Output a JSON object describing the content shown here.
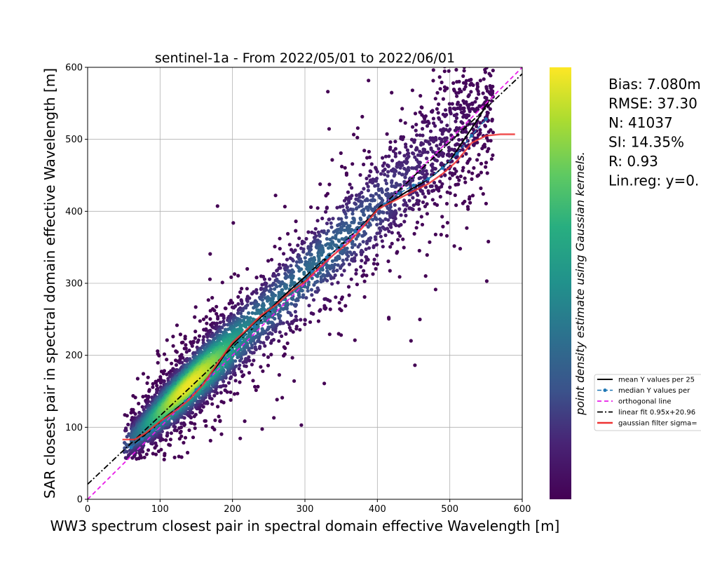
{
  "chart_data": {
    "type": "scatter",
    "title": "sentinel-1a - From 2022/05/01 to 2022/06/01",
    "xlabel": "WW3 spectrum closest pair in spectral domain effective Wavelength [m]",
    "ylabel": "SAR closest pair in spectral domain effective Wavelength [m]",
    "xlim": [
      0,
      600
    ],
    "ylim": [
      0,
      600
    ],
    "xticks": [
      "0",
      "100",
      "200",
      "300",
      "400",
      "500",
      "600"
    ],
    "yticks": [
      "0",
      "100",
      "200",
      "300",
      "400",
      "500",
      "600"
    ],
    "grid": true,
    "colormap": "viridis",
    "colorbar_label": "point density estimate using Gaussian kernels.",
    "stats": [
      "Bias: 7.080m",
      "RMSE: 37.30",
      "N: 41037",
      "SI: 14.35%",
      "R: 0.93",
      "Lin.reg: y=0."
    ],
    "legend_placement": "right-outside",
    "legend": [
      "mean Y values per 25",
      "median Y values per",
      "orthogonal line",
      "linear fit 0.95x+20.96",
      "gaussian filter sigma="
    ],
    "series": [
      {
        "name": "mean Y values per 25",
        "color": "#000000",
        "x": [
          65,
          75,
          90,
          105,
          120,
          135,
          150,
          165,
          180,
          195,
          210,
          230,
          250,
          270,
          290,
          310,
          330,
          350,
          370,
          390,
          405,
          420,
          440,
          460,
          480,
          500,
          520,
          540,
          555
        ],
        "y": [
          78,
          86,
          98,
          112,
          124,
          136,
          150,
          168,
          187,
          210,
          225,
          245,
          262,
          282,
          300,
          318,
          336,
          352,
          372,
          392,
          408,
          414,
          427,
          438,
          452,
          470,
          500,
          530,
          555
        ]
      },
      {
        "name": "median Y values per",
        "color": "#1f77b4",
        "x": [
          60,
          75,
          90,
          105,
          120,
          135,
          150,
          170,
          190,
          210,
          230,
          250,
          270,
          290,
          310,
          330,
          350,
          370,
          390,
          410,
          430,
          450,
          470,
          490,
          510,
          530,
          550
        ],
        "y": [
          72,
          84,
          97,
          110,
          122,
          136,
          152,
          172,
          196,
          220,
          240,
          258,
          278,
          296,
          316,
          336,
          352,
          372,
          390,
          410,
          425,
          436,
          445,
          460,
          480,
          505,
          528
        ]
      },
      {
        "name": "orthogonal line",
        "color": "#e81ce8",
        "x": [
          0,
          600
        ],
        "y": [
          0,
          600
        ]
      },
      {
        "name": "linear fit 0.95x+20.96",
        "color": "#000000",
        "x": [
          0,
          600
        ],
        "y": [
          20.96,
          590.96
        ]
      },
      {
        "name": "gaussian filter sigma=",
        "color": "#ee3333",
        "x": [
          48,
          65,
          80,
          100,
          120,
          140,
          160,
          180,
          200,
          220,
          240,
          260,
          280,
          300,
          320,
          340,
          360,
          380,
          400,
          410,
          430,
          450,
          470,
          490,
          510,
          530,
          550,
          570,
          590
        ],
        "y": [
          83,
          83,
          92,
          108,
          122,
          138,
          160,
          190,
          218,
          236,
          256,
          270,
          288,
          302,
          322,
          340,
          356,
          378,
          402,
          408,
          418,
          428,
          438,
          452,
          470,
          495,
          505,
          507,
          507
        ]
      }
    ]
  }
}
